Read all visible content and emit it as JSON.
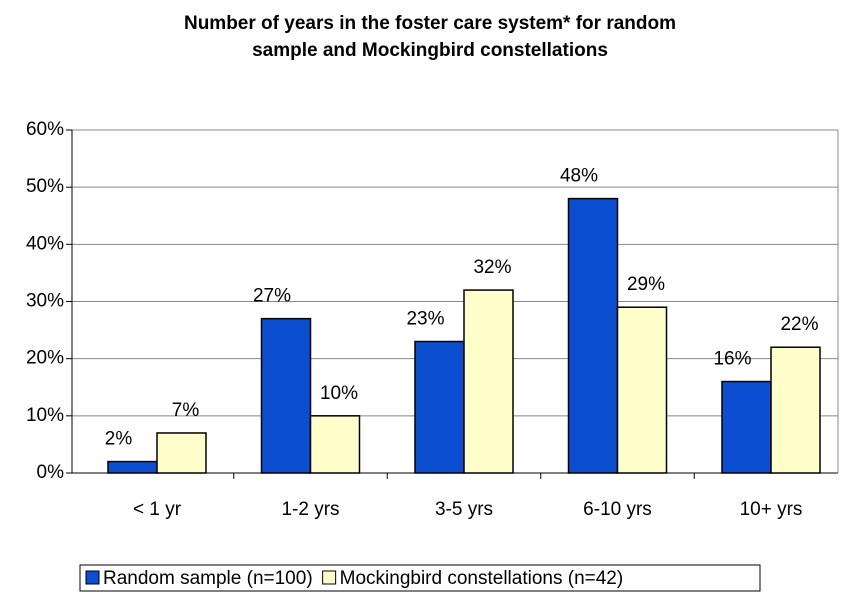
{
  "chart_data": {
    "type": "bar",
    "title": "Number of years in the foster care system* for random sample and Mockingbird constellations",
    "categories": [
      "< 1 yr",
      "1-2 yrs",
      "3-5 yrs",
      "6-10 yrs",
      "10+ yrs"
    ],
    "series": [
      {
        "name": "Random sample (n=100)",
        "color": "#0b4fd0",
        "values": [
          2,
          27,
          23,
          48,
          16
        ],
        "value_labels": [
          "2%",
          "27%",
          "23%",
          "48%",
          "16%"
        ]
      },
      {
        "name": "Mockingbird constellations (n=42)",
        "color": "#ffffcc",
        "values": [
          7,
          10,
          32,
          29,
          22
        ],
        "value_labels": [
          "7%",
          "10%",
          "32%",
          "29%",
          "22%"
        ]
      }
    ],
    "ylim": [
      0,
      60
    ],
    "yticks": [
      {
        "value": 0,
        "label": "0%"
      },
      {
        "value": 10,
        "label": "10%"
      },
      {
        "value": 20,
        "label": "20%"
      },
      {
        "value": 30,
        "label": "30%"
      },
      {
        "value": 40,
        "label": "40%"
      },
      {
        "value": 50,
        "label": "50%"
      },
      {
        "value": 60,
        "label": "60%"
      }
    ],
    "legend": "bottom"
  }
}
